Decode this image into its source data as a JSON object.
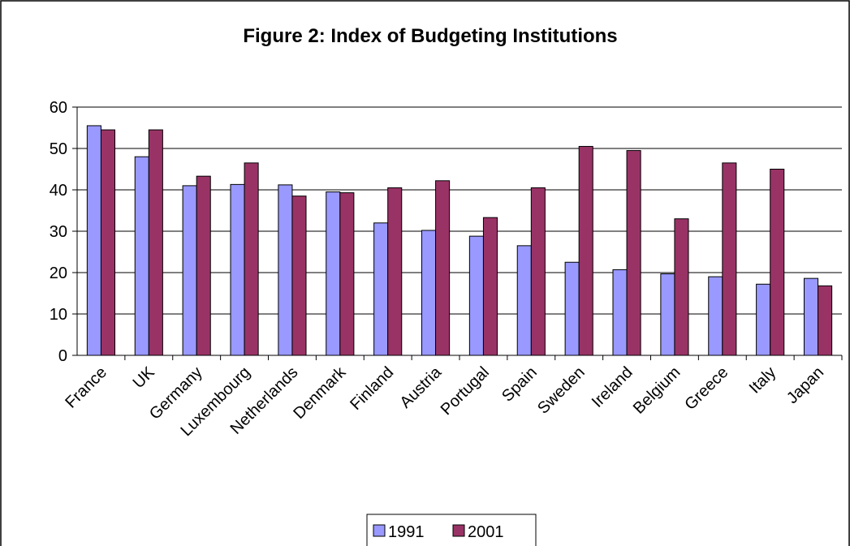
{
  "chart_data": {
    "type": "bar",
    "title": "Figure 2: Index of Budgeting Institutions",
    "categories": [
      "France",
      "UK",
      "Germany",
      "Luxembourg",
      "Netherlands",
      "Denmark",
      "Finland",
      "Austria",
      "Portugal",
      "Spain",
      "Sweden",
      "Ireland",
      "Belgium",
      "Greece",
      "Italy",
      "Japan"
    ],
    "series": [
      {
        "name": "1991",
        "color": "#9999ff",
        "values": [
          55.5,
          48,
          41,
          41.3,
          41.2,
          39.5,
          32,
          30.2,
          28.8,
          26.5,
          22.5,
          20.7,
          19.7,
          19,
          17.2,
          18.6
        ]
      },
      {
        "name": "2001",
        "color": "#993366",
        "values": [
          54.5,
          54.5,
          43.3,
          46.5,
          38.5,
          39.3,
          40.5,
          42.2,
          33.3,
          40.5,
          50.5,
          49.5,
          33,
          46.5,
          45,
          16.8
        ]
      }
    ],
    "ylim": [
      0,
      60
    ],
    "yticks": [
      0,
      10,
      20,
      30,
      40,
      50,
      60
    ],
    "grid": true,
    "legend": "bottom"
  }
}
